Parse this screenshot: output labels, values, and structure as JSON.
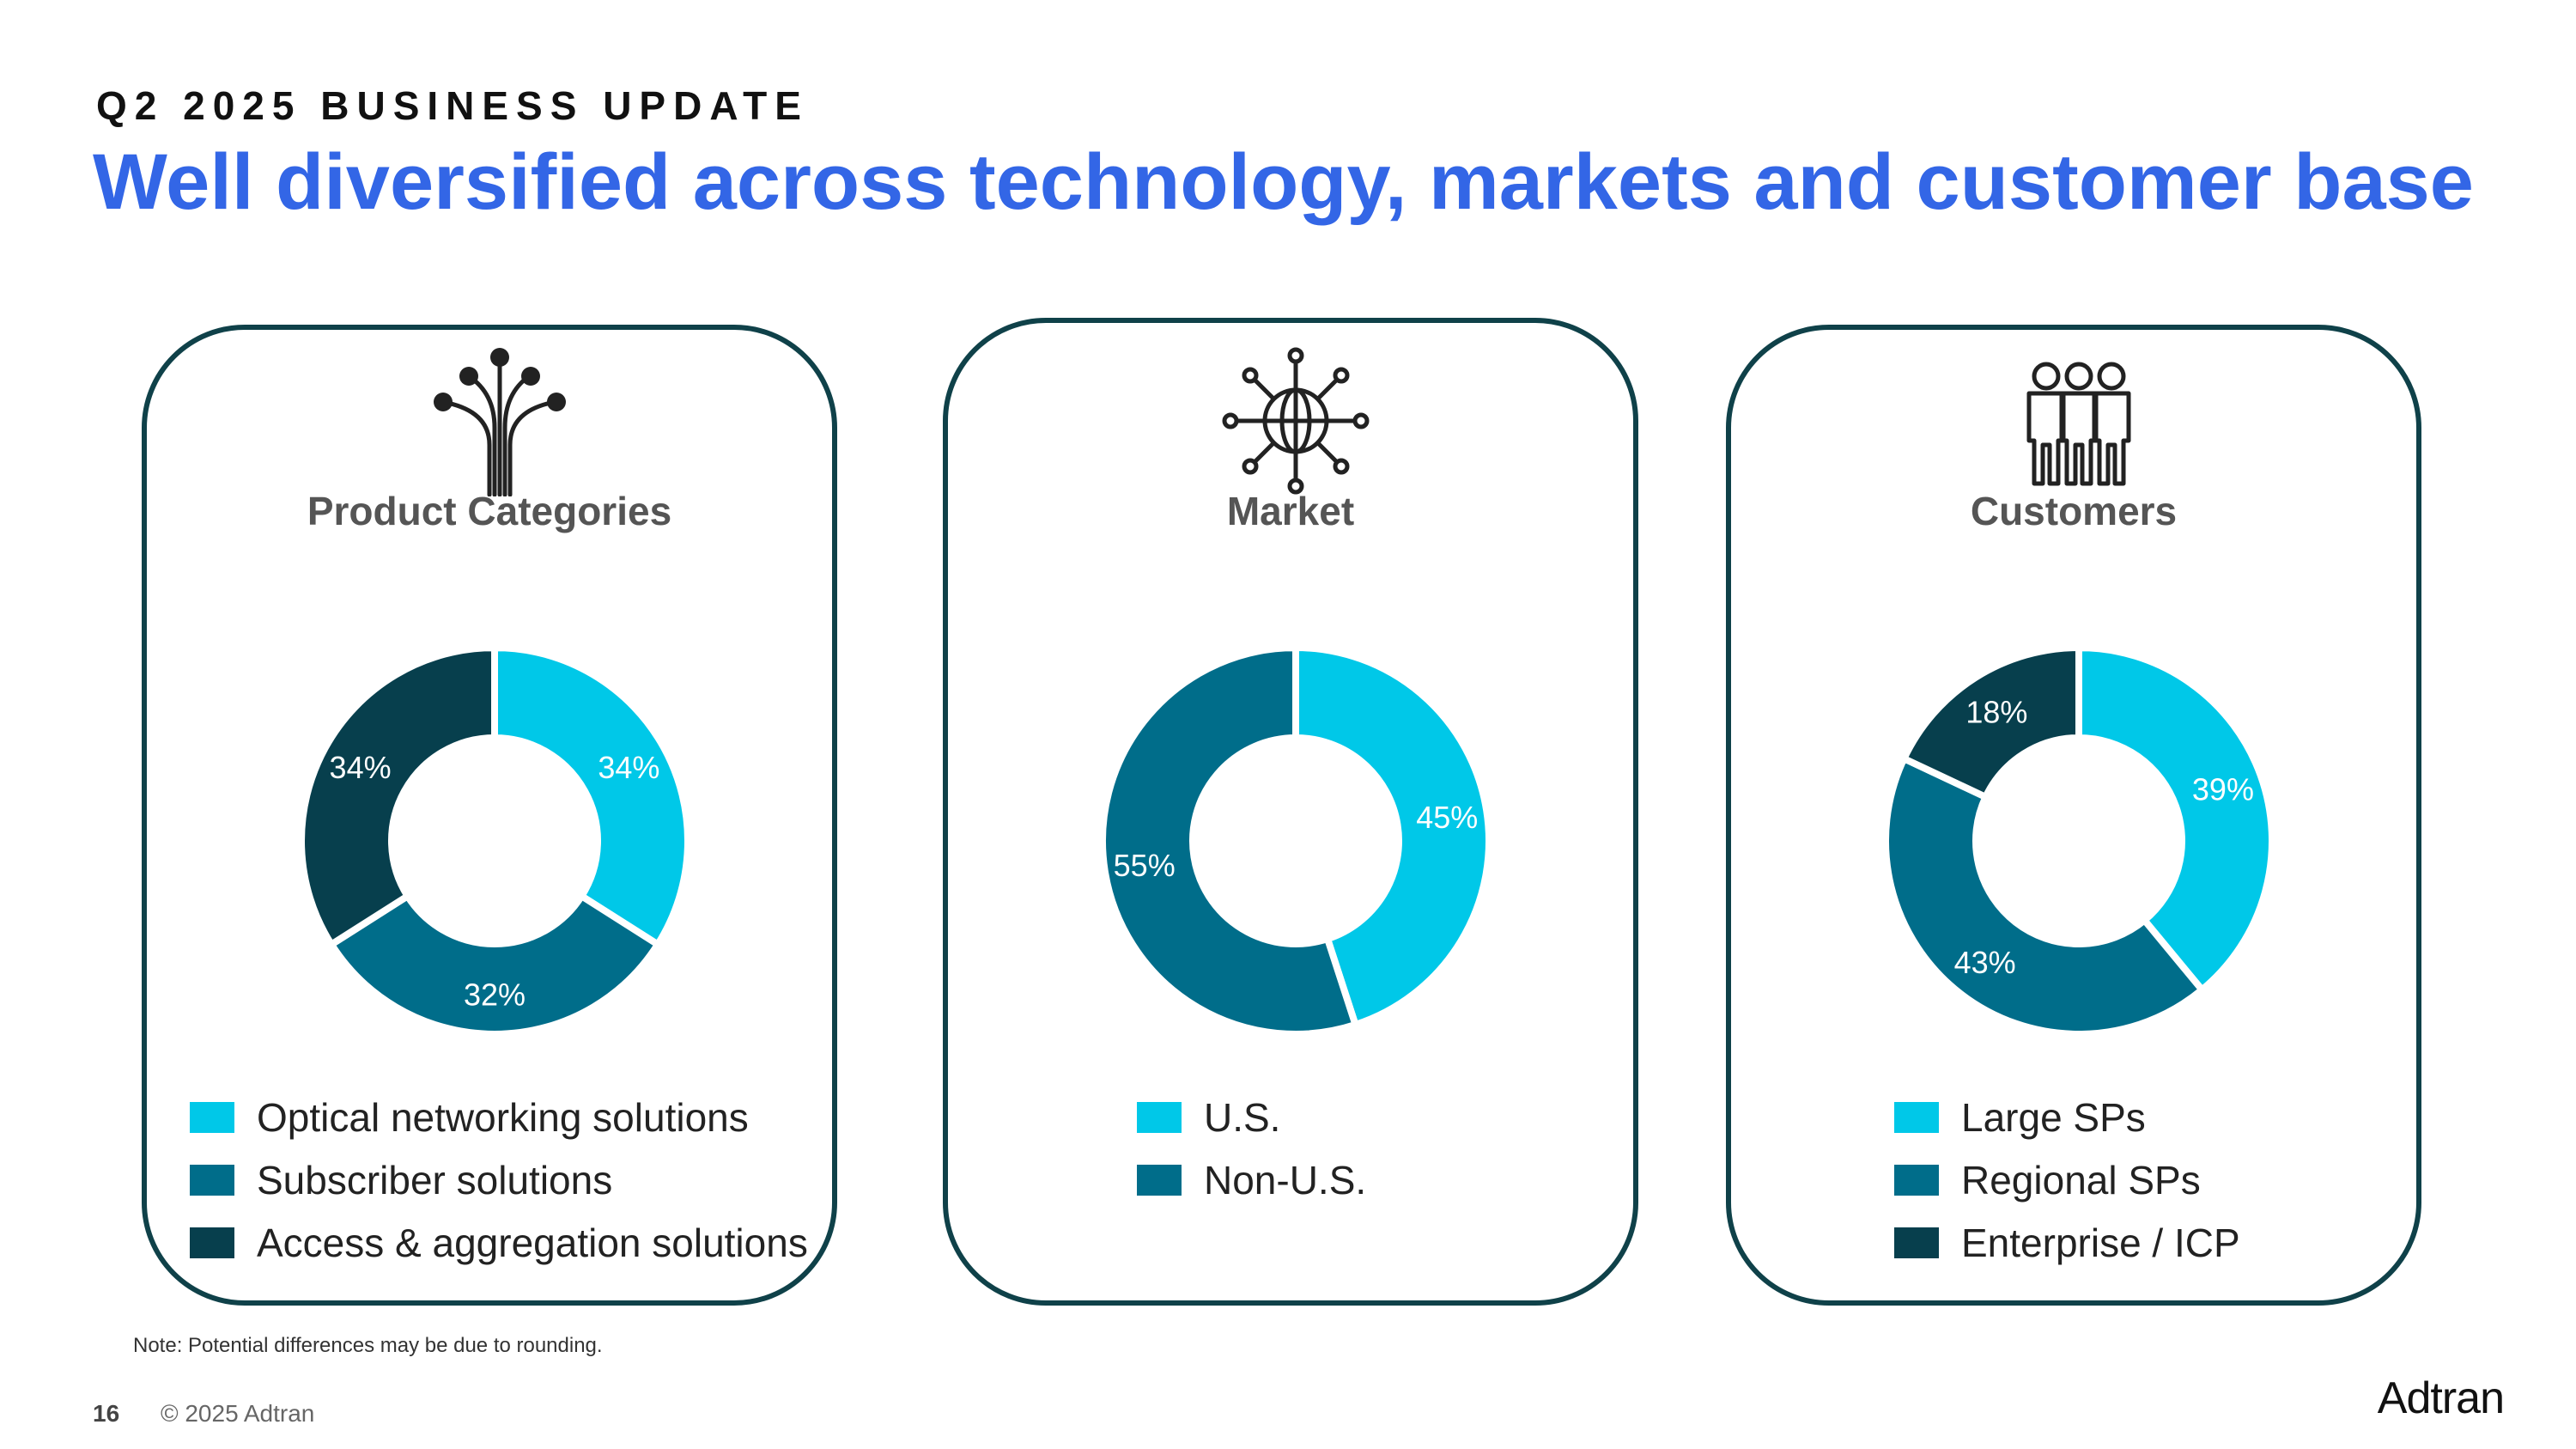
{
  "header": {
    "kicker": "Q2 2025 BUSINESS UPDATE",
    "title": "Well diversified across technology, markets and customer base"
  },
  "colors": {
    "light": "#00c8e8",
    "mid": "#006d8a",
    "dark": "#073f4d",
    "title": "#3366e6",
    "border": "#0f4149"
  },
  "chart_data": [
    {
      "type": "pie",
      "title": "Product Categories",
      "icon": "fiber-optic-icon",
      "categories": [
        "Optical networking solutions",
        "Subscriber solutions",
        "Access & aggregation solutions"
      ],
      "values": [
        34,
        32,
        34
      ],
      "labels": [
        "34%",
        "32%",
        "34%"
      ],
      "colors": [
        "#00c8e8",
        "#006d8a",
        "#073f4d"
      ]
    },
    {
      "type": "pie",
      "title": "Market",
      "icon": "globe-network-icon",
      "categories": [
        "U.S.",
        "Non-U.S."
      ],
      "values": [
        45,
        55
      ],
      "labels": [
        "45%",
        "55%"
      ],
      "colors": [
        "#00c8e8",
        "#006d8a"
      ]
    },
    {
      "type": "pie",
      "title": "Customers",
      "icon": "people-group-icon",
      "categories": [
        "Large SPs",
        "Regional SPs",
        "Enterprise / ICP"
      ],
      "values": [
        39,
        43,
        18
      ],
      "labels": [
        "39%",
        "43%",
        "18%"
      ],
      "colors": [
        "#00c8e8",
        "#006d8a",
        "#073f4d"
      ]
    }
  ],
  "footer": {
    "note": "Note: Potential differences may be due to rounding.",
    "page_number": "16",
    "copyright": "© 2025 Adtran",
    "logo": "Adtran"
  }
}
